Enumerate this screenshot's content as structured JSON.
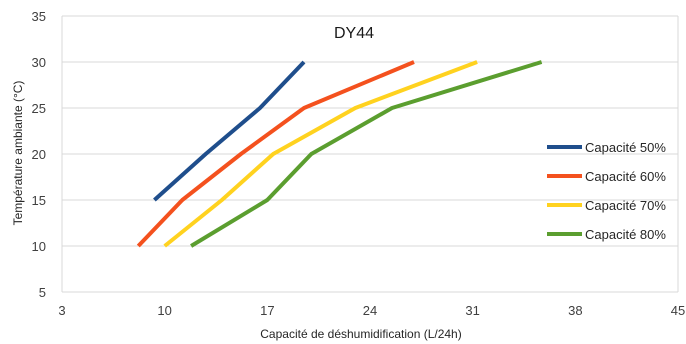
{
  "chart_data": {
    "type": "line",
    "title": "DY44",
    "xlabel": "Capacité de déshumidification (L/24h)",
    "ylabel": "Température ambiante (°C)",
    "xlim": [
      3,
      45
    ],
    "ylim": [
      5,
      35
    ],
    "x_ticks": [
      3,
      10,
      17,
      24,
      31,
      38,
      45
    ],
    "y_ticks": [
      5,
      10,
      15,
      20,
      25,
      30,
      35
    ],
    "grid": "horizontal",
    "legend_position": "right",
    "series": [
      {
        "name": "Capacité 50%",
        "color": "#1f4e8c",
        "x": [
          9.3,
          12.8,
          16.5,
          19.5
        ],
        "y": [
          15,
          20,
          25,
          30
        ]
      },
      {
        "name": "Capacité 60%",
        "color": "#f4511e",
        "x": [
          8.2,
          11.2,
          15.2,
          19.5,
          27.0
        ],
        "y": [
          10,
          15,
          20,
          25,
          30
        ]
      },
      {
        "name": "Capacité 70%",
        "color": "#ffd21f",
        "x": [
          10.0,
          13.9,
          17.4,
          23.0,
          31.3
        ],
        "y": [
          10,
          15,
          20,
          25,
          30
        ]
      },
      {
        "name": "Capacité 80%",
        "color": "#5b9e2f",
        "x": [
          11.8,
          17.0,
          20.0,
          25.5,
          35.7
        ],
        "y": [
          10,
          15,
          20,
          25,
          30
        ]
      }
    ]
  }
}
